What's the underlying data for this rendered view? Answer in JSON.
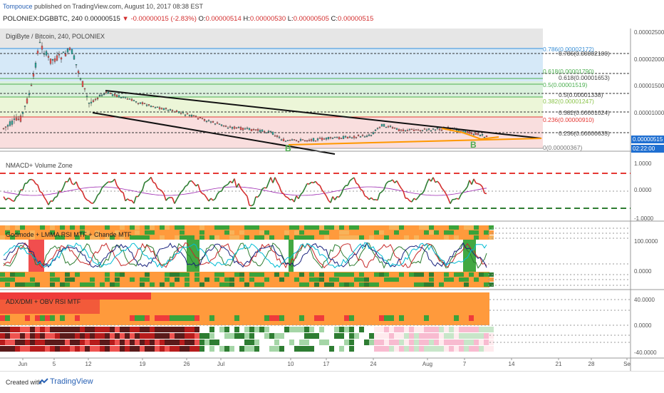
{
  "header": {
    "author": "Tompouce",
    "published": "published on TradingView.com, August 10, 2017 08:38 EST",
    "symbol": "POLONIEX:DGBBTC, 240",
    "last": "0.00000515",
    "change": "-0.00000015 (-2.83%)",
    "o_label": "O:",
    "o": "0.00000514",
    "h_label": "H:",
    "h": "0.00000530",
    "l_label": "L:",
    "l": "0.00000505",
    "c_label": "C:",
    "c": "0.00000515"
  },
  "main_pane": {
    "title": "DigiByte / Bitcoin, 240, POLONIEX",
    "price_ticks": [
      "0.00002500",
      "0.00002000",
      "0.00001500",
      "0.00001000",
      "0.00000500"
    ],
    "current_price": "0.00000515",
    "countdown": "02:22:00",
    "fib_left": [
      {
        "label": "0.786(0.00002172)",
        "color": "#3a8fd6"
      },
      {
        "label": "0.618(0.00001790)",
        "color": "#4caf50"
      },
      {
        "label": "0.5(0.00001519)",
        "color": "#4caf50"
      },
      {
        "label": "0.382(0.00001247)",
        "color": "#8bc34a"
      },
      {
        "label": "0.236(0.00000910)",
        "color": "#e53935"
      },
      {
        "label": "0(0.00000367)",
        "color": "#777777"
      }
    ],
    "fib_right": [
      {
        "label": "0.786(0.00002100)"
      },
      {
        "label": "0.618(0.00001653)"
      },
      {
        "label": "0.5(0.00001338)"
      },
      {
        "label": "0.382(0.00001024)"
      },
      {
        "label": "0.236(0.00000635)"
      }
    ],
    "markers": [
      "B",
      "B"
    ],
    "colors": {
      "up": "#26a69a",
      "down": "#ef5350",
      "orange": "#ff9800"
    }
  },
  "nmacd_pane": {
    "title": "NMACD+ Volume Zone",
    "ticks": [
      "1.0000",
      "0.0000",
      "-1.0000"
    ]
  },
  "godmode_pane": {
    "title": "Godmode + LMMA RSI MTF + Chande MTF",
    "ticks": [
      "100.0000",
      "0.0000"
    ]
  },
  "adx_pane": {
    "title": "ADX/DMI + OBV RSI MTF",
    "ticks": [
      "40.0000",
      "0.0000",
      "-40.0000"
    ]
  },
  "time_axis": [
    "Jun",
    "5",
    "12",
    "19",
    "26",
    "Jul",
    "10",
    "17",
    "24",
    "Aug",
    "7",
    "14",
    "21",
    "28",
    "Se"
  ],
  "footer": {
    "made": "Created with",
    "brand": "TradingView"
  }
}
